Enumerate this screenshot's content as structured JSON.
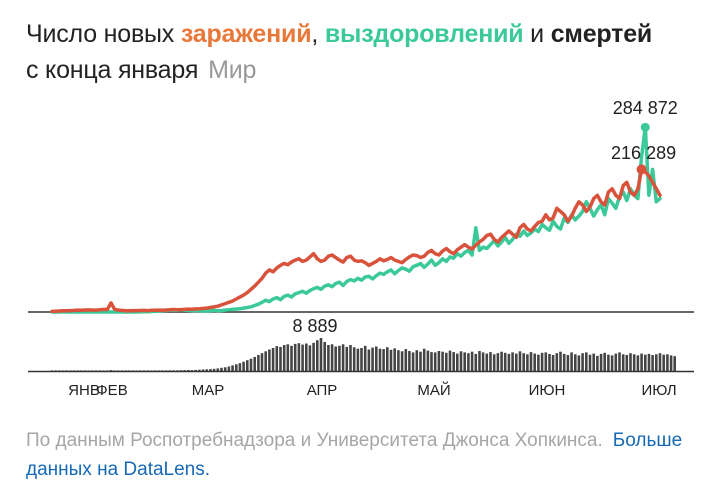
{
  "title": {
    "prefix": "Число новых ",
    "infections": "заражений",
    "sep1": ", ",
    "recoveries": "выздоровлений",
    "sep2": " и ",
    "deaths": "смертей",
    "line2": "с конца января",
    "region": "Мир"
  },
  "colors": {
    "infections": "#e8783a",
    "infections_line": "#d9533c",
    "recoveries": "#3cc99a",
    "deaths": "#222222",
    "bars": "#444444",
    "axis": "#333333",
    "text": "#222222"
  },
  "source": {
    "text": "По данным Роспотребнадзора и Университета Джонса Хопкинса.",
    "link": "Больше данных на DataLens."
  },
  "chart_data": {
    "type": "line",
    "x_ticks": [
      "ЯНВ",
      "ФЕВ",
      "МАР",
      "АПР",
      "МАЙ",
      "ИЮН",
      "ИЮЛ"
    ],
    "annotations": [
      {
        "label": "284 872",
        "series": "recoveries",
        "value": 284872
      },
      {
        "label": "216 289",
        "series": "infections",
        "value": 216289
      },
      {
        "label": "8 889",
        "series": "deaths",
        "value": 8889
      }
    ],
    "infections": [
      1000,
      1200,
      1500,
      2000,
      1800,
      2200,
      2500,
      3000,
      2800,
      3100,
      3300,
      3000,
      2900,
      3500,
      4000,
      3800,
      14000,
      4200,
      3000,
      2500,
      2000,
      1800,
      2200,
      2100,
      2300,
      2500,
      2200,
      2600,
      2800,
      3000,
      2700,
      3100,
      3500,
      3800,
      3400,
      3700,
      4000,
      4500,
      4100,
      4800,
      5000,
      5500,
      6000,
      7000,
      8000,
      9000,
      11000,
      13000,
      15000,
      17000,
      20000,
      23000,
      26000,
      30000,
      35000,
      40000,
      46000,
      52000,
      60000,
      65000,
      62000,
      68000,
      72000,
      75000,
      73000,
      77000,
      80000,
      82000,
      78000,
      80000,
      85000,
      90000,
      82000,
      78000,
      80000,
      86000,
      88000,
      84000,
      80000,
      77000,
      84000,
      86000,
      80000,
      78000,
      79000,
      76000,
      72000,
      75000,
      78000,
      82000,
      79000,
      81000,
      84000,
      80000,
      78000,
      76000,
      81000,
      85000,
      88000,
      87000,
      84000,
      86000,
      92000,
      95000,
      90000,
      88000,
      94000,
      98000,
      93000,
      90000,
      96000,
      100000,
      104000,
      100000,
      97000,
      103000,
      108000,
      112000,
      118000,
      120000,
      112000,
      108000,
      115000,
      120000,
      125000,
      120000,
      115000,
      130000,
      135000,
      128000,
      125000,
      132000,
      138000,
      140000,
      150000,
      142000,
      145000,
      160000,
      155000,
      150000,
      140000,
      148000,
      160000,
      170000,
      165000,
      155000,
      162000,
      175000,
      180000,
      170000,
      165000,
      185000,
      190000,
      180000,
      175000,
      195000,
      200000,
      185000,
      180000,
      190000,
      220000,
      216289,
      210000,
      200000,
      190000,
      180000
    ],
    "recoveries": [
      0,
      0,
      0,
      0,
      0,
      0,
      0,
      0,
      0,
      0,
      0,
      0,
      0,
      0,
      0,
      0,
      0,
      0,
      0,
      0,
      0,
      0,
      0,
      0,
      200,
      300,
      500,
      700,
      1000,
      1500,
      2000,
      2500,
      3000,
      2500,
      2800,
      3200,
      2600,
      2400,
      2200,
      2000,
      1800,
      1500,
      1600,
      2000,
      2500,
      1800,
      2200,
      3000,
      3500,
      4000,
      4500,
      5000,
      6000,
      7000,
      8000,
      10000,
      12000,
      15000,
      18000,
      16000,
      20000,
      22000,
      19000,
      24000,
      26000,
      23000,
      28000,
      30000,
      32000,
      29000,
      33000,
      36000,
      38000,
      35000,
      40000,
      42000,
      39000,
      44000,
      46000,
      41000,
      47000,
      50000,
      48000,
      52000,
      49000,
      54000,
      55000,
      51000,
      56000,
      60000,
      58000,
      62000,
      65000,
      59000,
      64000,
      68000,
      66000,
      63000,
      70000,
      72000,
      75000,
      69000,
      74000,
      80000,
      72000,
      76000,
      82000,
      78000,
      85000,
      83000,
      90000,
      86000,
      92000,
      95000,
      88000,
      130000,
      95000,
      100000,
      98000,
      104000,
      110000,
      102000,
      108000,
      115000,
      106000,
      112000,
      120000,
      117000,
      125000,
      118000,
      122000,
      128000,
      124000,
      135000,
      130000,
      126000,
      140000,
      132000,
      128000,
      145000,
      138000,
      150000,
      142000,
      148000,
      155000,
      170000,
      160000,
      148000,
      158000,
      165000,
      150000,
      175000,
      168000,
      160000,
      178000,
      185000,
      172000,
      190000,
      180000,
      175000,
      240000,
      284872,
      180000,
      220000,
      170000,
      175000
    ],
    "deaths": [
      20,
      30,
      40,
      40,
      50,
      60,
      60,
      70,
      80,
      90,
      90,
      100,
      110,
      100,
      120,
      130,
      250,
      140,
      130,
      120,
      100,
      90,
      100,
      110,
      110,
      120,
      130,
      140,
      150,
      160,
      150,
      170,
      180,
      200,
      190,
      220,
      240,
      260,
      250,
      300,
      350,
      400,
      450,
      500,
      600,
      700,
      850,
      1000,
      1200,
      1500,
      1800,
      2100,
      2500,
      2900,
      3300,
      3800,
      4300,
      4800,
      5300,
      5800,
      6200,
      6700,
      6500,
      7000,
      7200,
      6800,
      7300,
      7500,
      7100,
      7400,
      6900,
      7600,
      8300,
      8889,
      7800,
      7000,
      7200,
      6600,
      6800,
      7200,
      6500,
      7000,
      6400,
      6000,
      6200,
      6800,
      5800,
      6300,
      6600,
      6000,
      5900,
      6400,
      5700,
      6100,
      5600,
      5300,
      5900,
      5400,
      5000,
      5600,
      5200,
      6000,
      5500,
      5100,
      5000,
      5400,
      5200,
      4900,
      5500,
      5100,
      4700,
      5300,
      5000,
      4800,
      5200,
      4600,
      5400,
      5000,
      4700,
      5100,
      4500,
      4800,
      5200,
      4900,
      4600,
      5000,
      4700,
      5300,
      4800,
      4500,
      5100,
      4700,
      4400,
      4900,
      5000,
      4600,
      4300,
      4800,
      5200,
      4600,
      4300,
      5000,
      4500,
      4200,
      4800,
      5000,
      4400,
      4700,
      4100,
      4600,
      4900,
      4400,
      4200,
      4700,
      5000,
      4500,
      4300,
      4800,
      4500,
      4200,
      4700,
      4400,
      4600,
      4300,
      4500,
      4800,
      4400,
      4500,
      4200,
      4000
    ]
  }
}
